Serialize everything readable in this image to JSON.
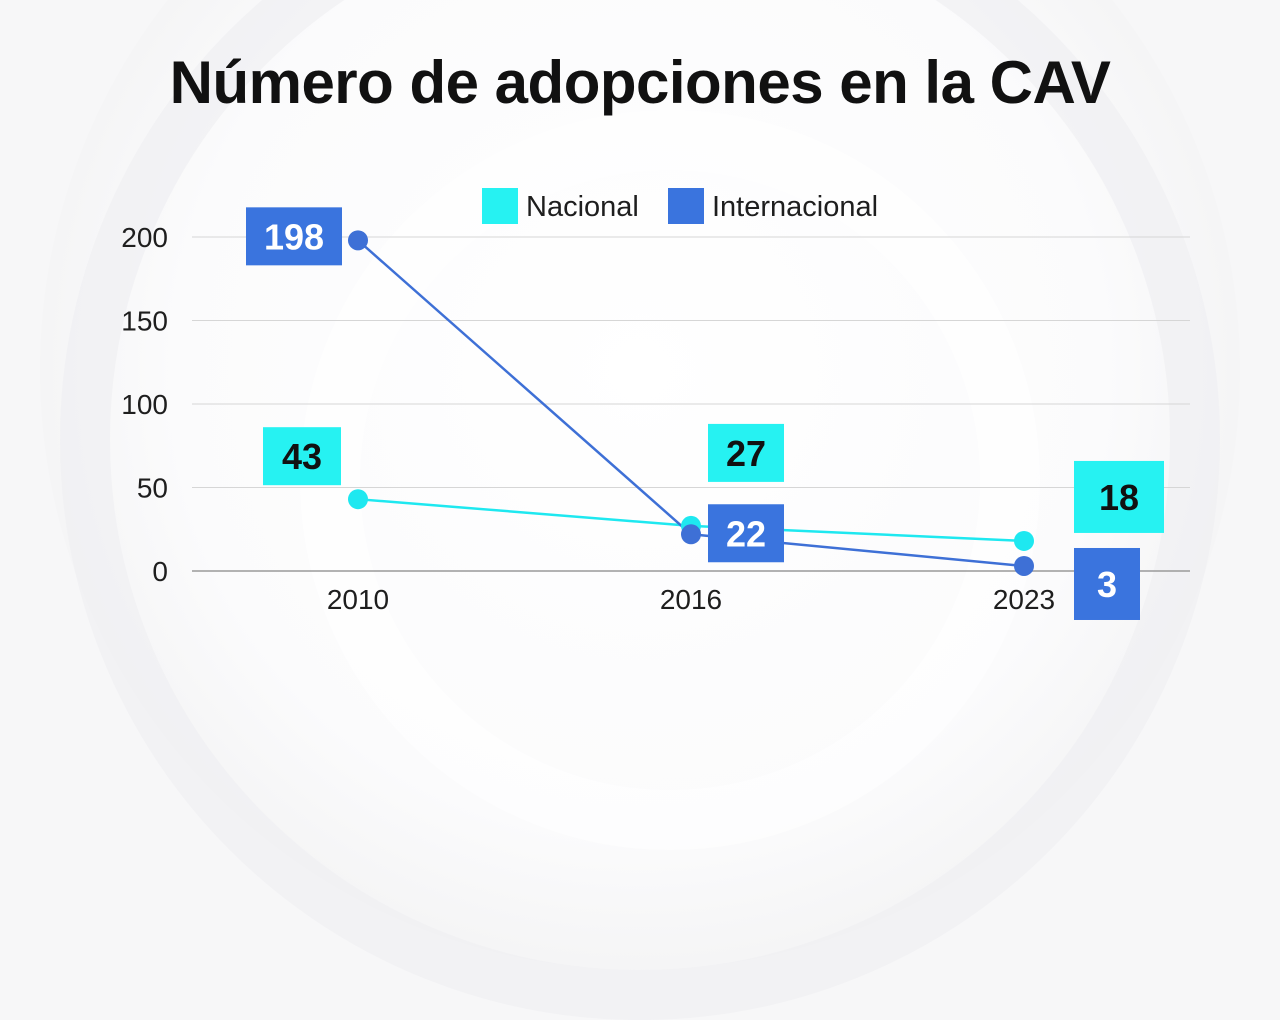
{
  "chart_data": {
    "type": "line",
    "title": "Número de adopciones en la CAV",
    "categories": [
      "2010",
      "2016",
      "2023"
    ],
    "series": [
      {
        "name": "Nacional",
        "color": "#1ee8f0",
        "label_bg": "#26f2f2",
        "label_color": "#111111",
        "values": [
          43,
          27,
          18
        ]
      },
      {
        "name": "Internacional",
        "color": "#3e70d6",
        "label_bg": "#3a74de",
        "label_color": "#ffffff",
        "values": [
          198,
          22,
          3
        ]
      }
    ],
    "yticks": [
      0,
      50,
      100,
      150,
      200
    ],
    "ylim": [
      0,
      200
    ],
    "xlabel": "",
    "ylabel": "",
    "legend": "top-center",
    "grid": true
  }
}
